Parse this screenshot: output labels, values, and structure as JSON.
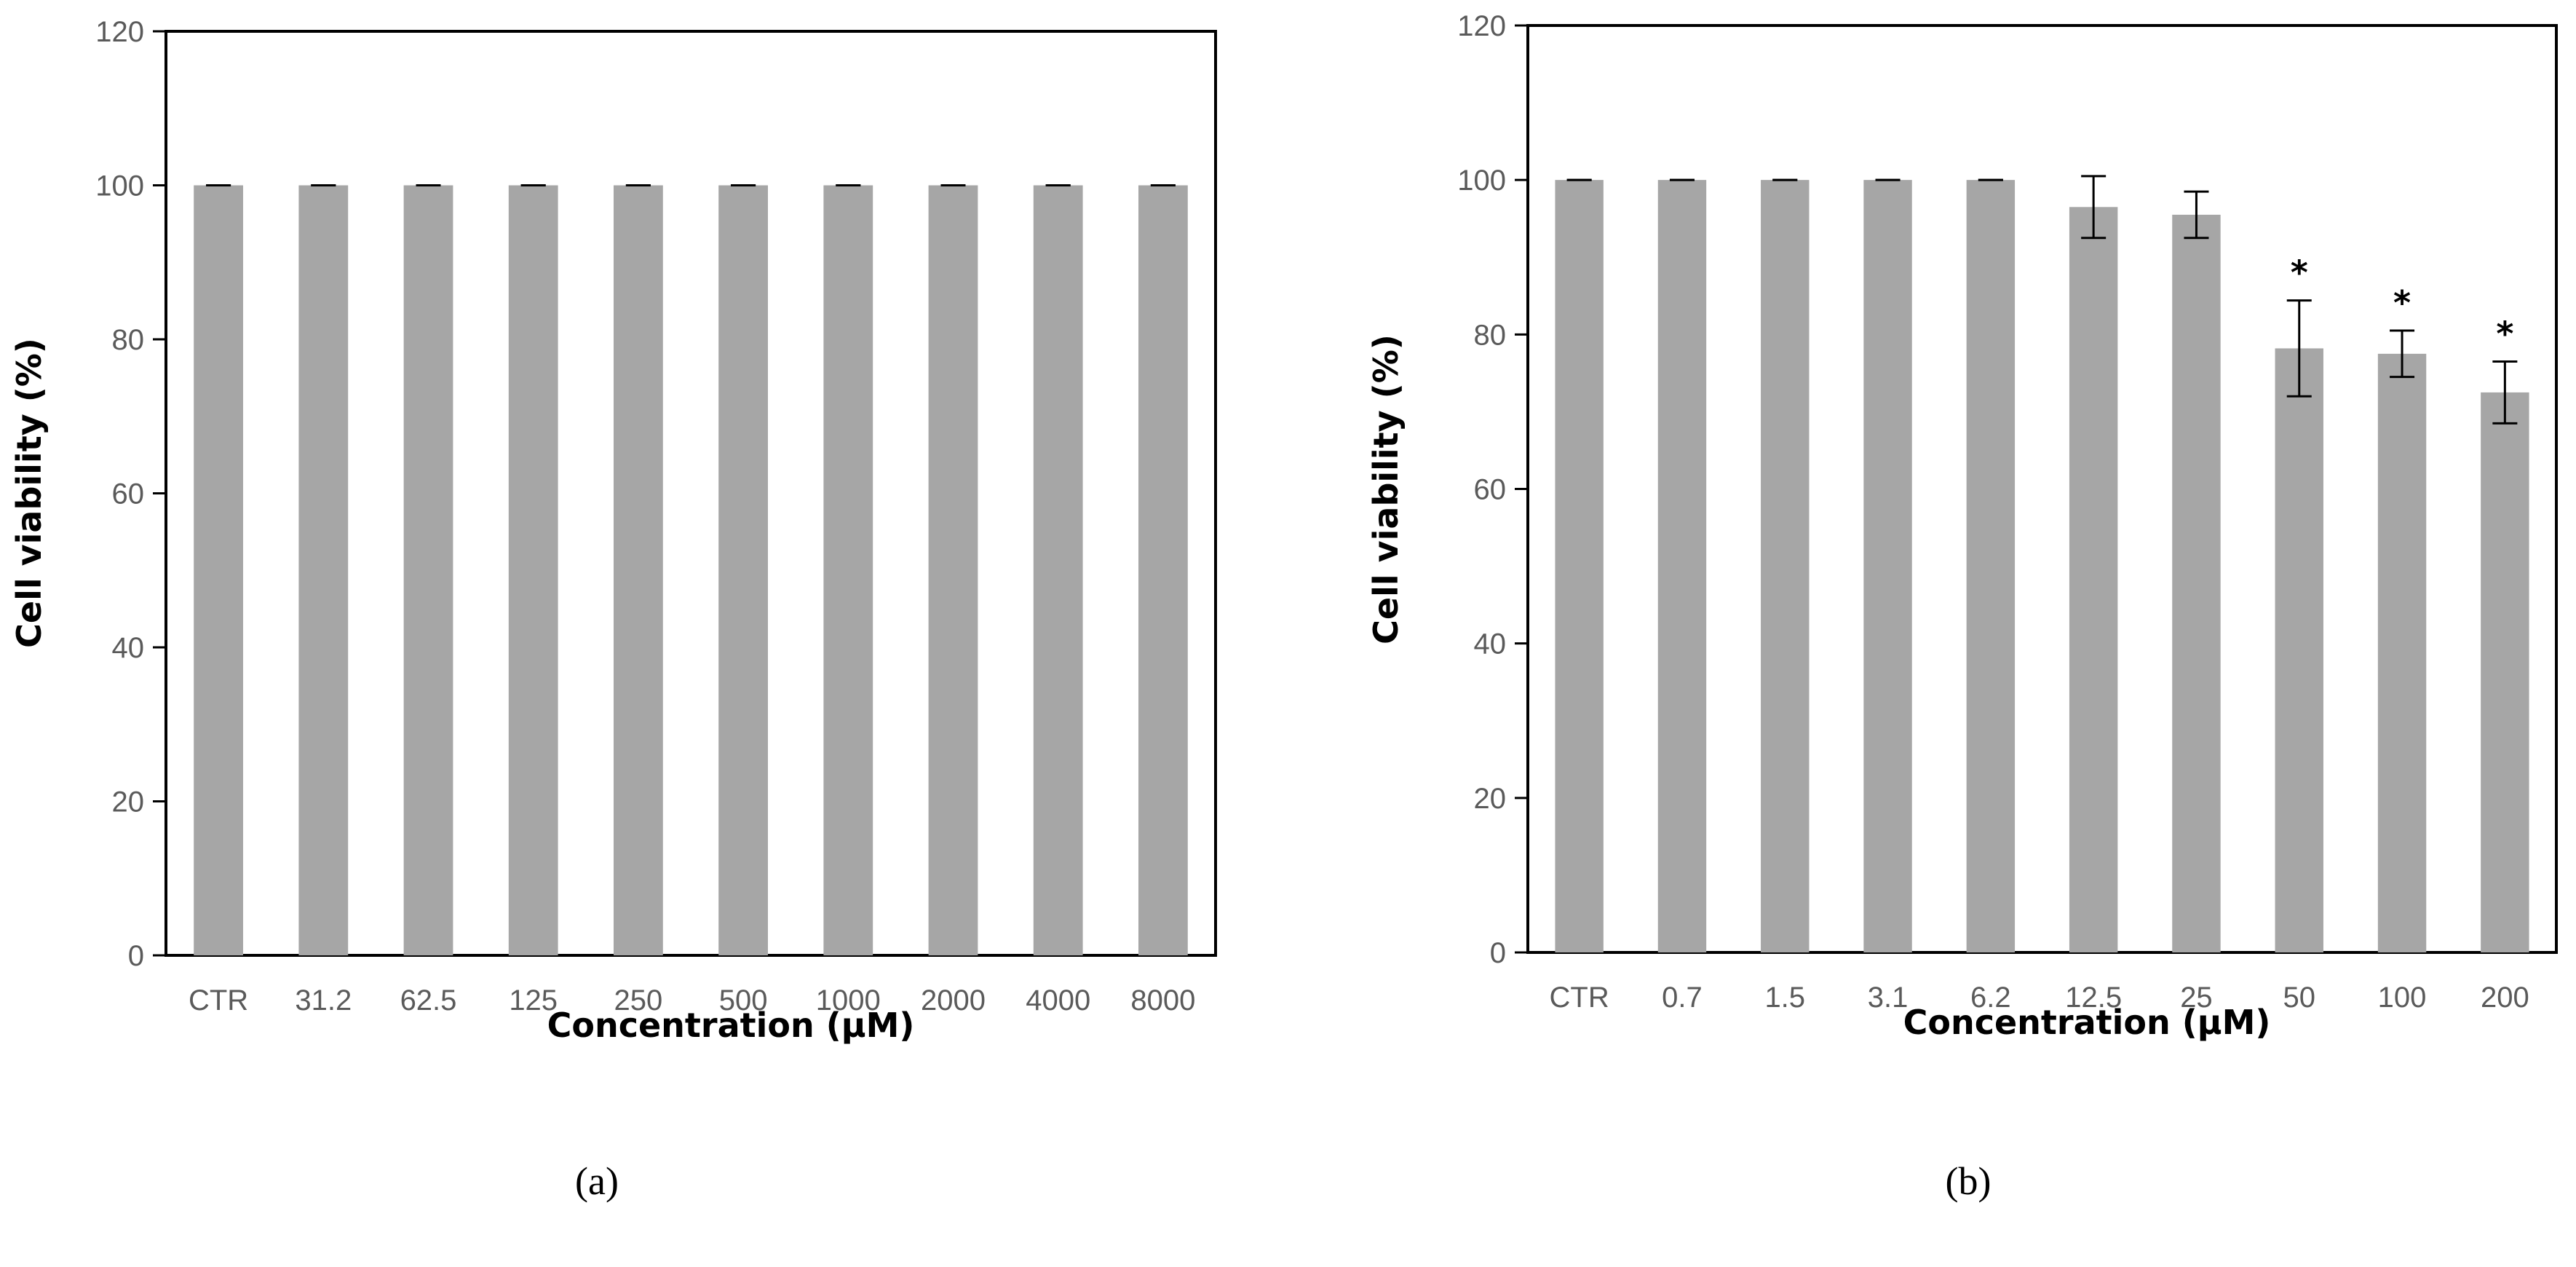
{
  "chart_data": [
    {
      "type": "bar",
      "panel_label": "(a)",
      "xlabel": "Concentration (μM)",
      "ylabel": "Cell viability (%)",
      "ylim": [
        0,
        120
      ],
      "y_ticks": [
        "0",
        "20",
        "40",
        "60",
        "80",
        "100",
        "120"
      ],
      "categories": [
        "CTR",
        "31.2",
        "62.5",
        "125",
        "250",
        "500",
        "1000",
        "2000",
        "4000",
        "8000"
      ],
      "values": [
        100,
        100,
        100,
        100,
        100,
        100,
        100,
        100,
        100,
        100
      ],
      "errors": [
        0,
        0,
        0,
        0,
        0,
        0,
        0,
        0,
        0,
        0
      ],
      "significance": [
        "",
        "",
        "",
        "",
        "",
        "",
        "",
        "",
        "",
        ""
      ],
      "bar_color": "#a6a6a6"
    },
    {
      "type": "bar",
      "panel_label": "(b)",
      "xlabel": "Concentration (μM)",
      "ylabel": "Cell viability (%)",
      "ylim": [
        0,
        120
      ],
      "y_ticks": [
        "0",
        "20",
        "40",
        "60",
        "80",
        "100",
        "120"
      ],
      "categories": [
        "CTR",
        "0.7",
        "1.5",
        "3.1",
        "6.2",
        "12.5",
        "25",
        "50",
        "100",
        "200"
      ],
      "values": [
        100,
        100,
        100,
        100,
        100,
        96.5,
        95.5,
        78.2,
        77.5,
        72.5
      ],
      "errors": [
        0,
        0,
        0,
        0,
        0,
        4.0,
        3.0,
        6.2,
        3.0,
        4.0
      ],
      "significance": [
        "",
        "",
        "",
        "",
        "",
        "",
        "",
        "*",
        "*",
        "*"
      ],
      "bar_color": "#a6a6a6"
    }
  ]
}
